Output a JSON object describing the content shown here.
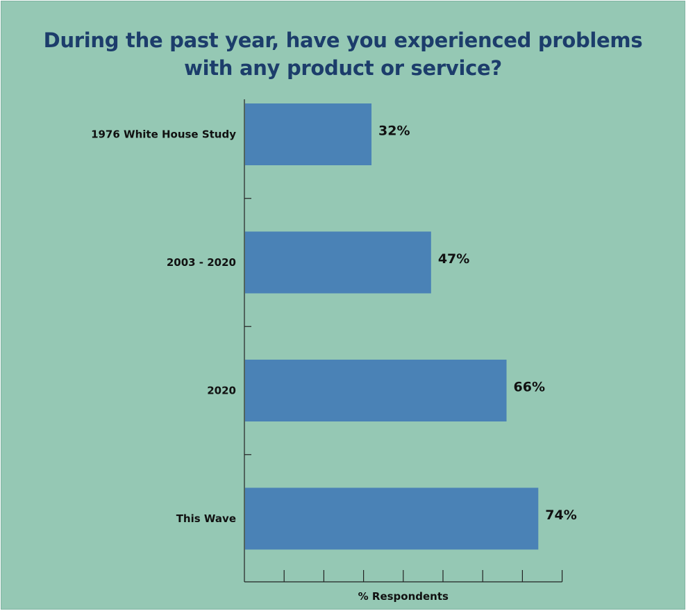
{
  "chart_data": {
    "type": "bar",
    "orientation": "horizontal",
    "title": "During the past year, have you experienced problems\nwith any product or service?",
    "xlabel": "% Respondents",
    "ylabel": "",
    "categories": [
      "1976 White House Study",
      "2003 - 2020",
      "2020",
      "This Wave"
    ],
    "values": [
      32,
      47,
      66,
      74
    ],
    "value_labels": [
      "32%",
      "47%",
      "66%",
      "74%"
    ],
    "xlim": [
      0,
      80
    ],
    "x_tick_count": 8,
    "grid": false,
    "legend": "none",
    "bar_color": "#4a82b6",
    "background_color": "#95c8b4",
    "title_color": "#1c3d6b"
  }
}
